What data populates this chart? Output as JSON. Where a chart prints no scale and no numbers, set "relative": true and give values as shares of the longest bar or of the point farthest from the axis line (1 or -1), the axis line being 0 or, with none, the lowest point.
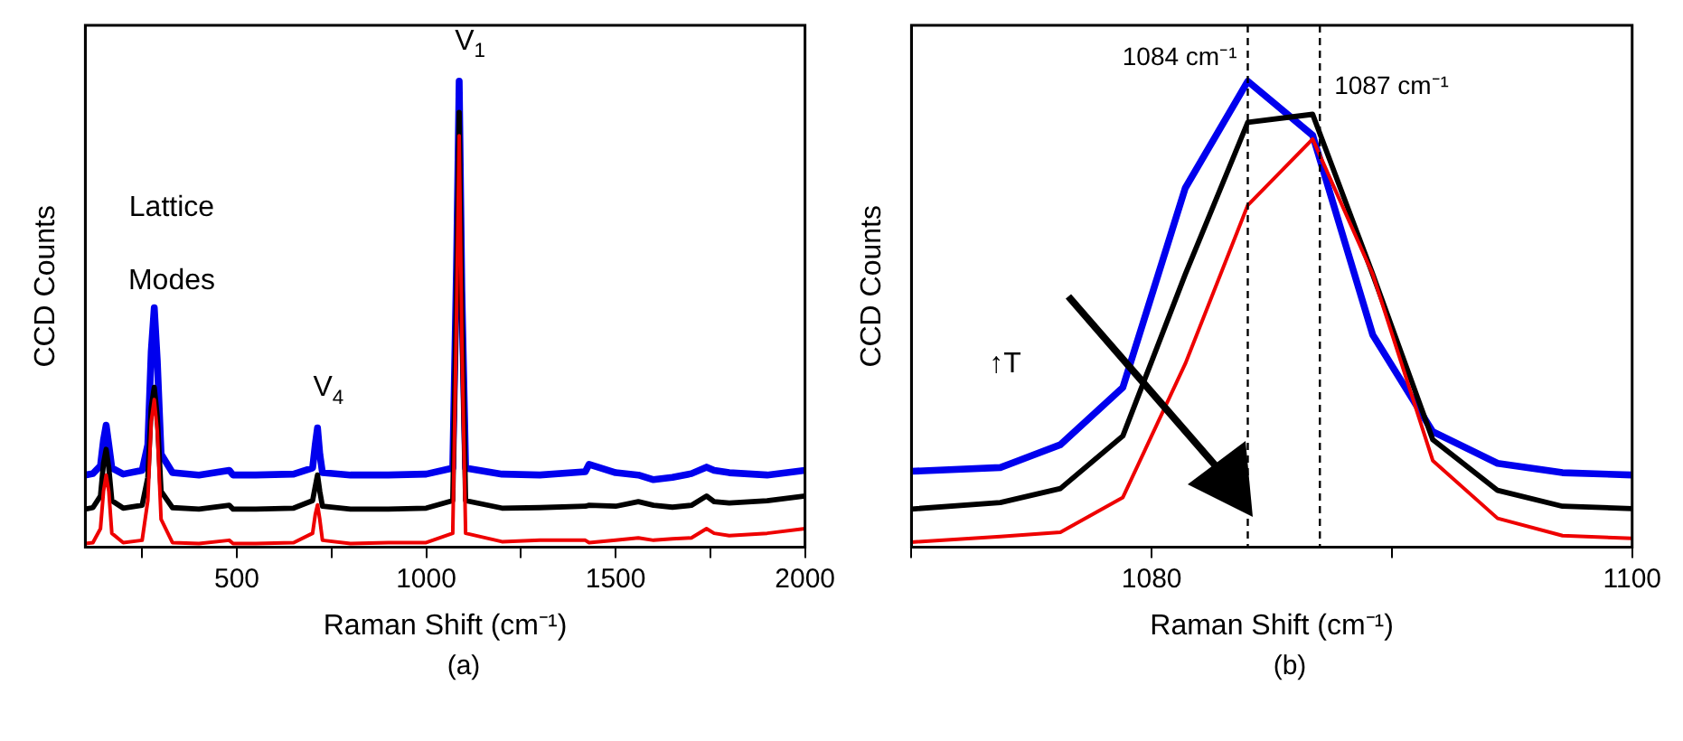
{
  "chart_data": [
    {
      "type": "line",
      "relative": true,
      "xlabel": "Raman Shift (cm⁻¹)",
      "ylabel": "CCD Counts",
      "xlim": [
        100,
        2000
      ],
      "xticks": [
        {
          "value": 250,
          "label": null
        },
        500,
        {
          "value": 750,
          "label": null
        },
        1000,
        {
          "value": 1250,
          "label": null
        },
        1500,
        {
          "value": 1750,
          "label": null
        },
        2000
      ],
      "grid": false,
      "legend": false,
      "marker": "none",
      "line_style": "solid",
      "x": [
        100,
        120,
        140,
        148,
        155,
        162,
        170,
        200,
        250,
        265,
        274,
        282,
        290,
        300,
        330,
        400,
        480,
        490,
        550,
        650,
        700,
        707,
        713,
        719,
        726,
        800,
        900,
        1000,
        1070,
        1080,
        1087,
        1094,
        1104,
        1200,
        1300,
        1420,
        1430,
        1500,
        1560,
        1600,
        1650,
        1700,
        1740,
        1760,
        1800,
        1900,
        2000
      ],
      "series": [
        {
          "color": "#0000ee",
          "values": [
            0.155,
            0.158,
            0.175,
            0.23,
            0.262,
            0.22,
            0.17,
            0.157,
            0.165,
            0.22,
            0.42,
            0.514,
            0.4,
            0.2,
            0.16,
            0.155,
            0.165,
            0.155,
            0.155,
            0.157,
            0.17,
            0.22,
            0.256,
            0.2,
            0.16,
            0.155,
            0.155,
            0.157,
            0.17,
            0.6,
            1.0,
            0.55,
            0.17,
            0.157,
            0.155,
            0.162,
            0.178,
            0.16,
            0.155,
            0.145,
            0.15,
            0.158,
            0.172,
            0.165,
            0.16,
            0.155,
            0.165
          ]
        },
        {
          "color": "#000000",
          "values": [
            0.082,
            0.085,
            0.11,
            0.18,
            0.21,
            0.17,
            0.1,
            0.084,
            0.09,
            0.15,
            0.3,
            0.343,
            0.28,
            0.12,
            0.085,
            0.082,
            0.09,
            0.082,
            0.082,
            0.084,
            0.1,
            0.13,
            0.155,
            0.12,
            0.088,
            0.082,
            0.082,
            0.084,
            0.1,
            0.55,
            0.933,
            0.5,
            0.1,
            0.084,
            0.085,
            0.088,
            0.09,
            0.088,
            0.098,
            0.09,
            0.086,
            0.09,
            0.11,
            0.098,
            0.095,
            0.1,
            0.11
          ]
        },
        {
          "color": "#ee0000",
          "values": [
            0.008,
            0.01,
            0.04,
            0.12,
            0.155,
            0.12,
            0.03,
            0.01,
            0.015,
            0.1,
            0.27,
            0.317,
            0.25,
            0.06,
            0.01,
            0.008,
            0.015,
            0.008,
            0.008,
            0.01,
            0.03,
            0.07,
            0.091,
            0.06,
            0.015,
            0.008,
            0.01,
            0.01,
            0.03,
            0.5,
            0.883,
            0.45,
            0.03,
            0.012,
            0.015,
            0.015,
            0.01,
            0.015,
            0.02,
            0.015,
            0.018,
            0.02,
            0.04,
            0.03,
            0.025,
            0.03,
            0.04
          ]
        }
      ],
      "annotations": [
        "Lattice",
        "Modes",
        {
          "text": "V$_{4}$",
          "x": 713,
          "y": 0.256
        },
        {
          "text": "V$_{1}$",
          "x": 1087,
          "y": 1.0
        },
        "(a)"
      ]
    },
    {
      "type": "line",
      "relative": true,
      "xlabel": "Raman Shift (cm⁻¹)",
      "ylabel": "CCD Counts",
      "xlim": [
        1070,
        1100
      ],
      "xticks": [
        {
          "value": 1070,
          "label": null
        },
        1080,
        {
          "value": 1090,
          "label": null
        },
        1100
      ],
      "grid": false,
      "legend": false,
      "marker": "none",
      "line_style": "solid",
      "x": [
        1070,
        1073.7,
        1076.2,
        1078.8,
        1081.4,
        1084,
        1086.7,
        1089.2,
        1091.7,
        1094.4,
        1097.1,
        1100
      ],
      "series": [
        {
          "color": "#0000ee",
          "values": [
            0.163,
            0.171,
            0.22,
            0.343,
            0.771,
            1.0,
            0.884,
            0.456,
            0.248,
            0.18,
            0.16,
            0.155
          ]
        },
        {
          "color": "#000000",
          "values": [
            0.082,
            0.096,
            0.126,
            0.239,
            0.586,
            0.912,
            0.929,
            0.586,
            0.231,
            0.122,
            0.088,
            0.083
          ]
        },
        {
          "color": "#ee0000",
          "values": [
            0.011,
            0.023,
            0.032,
            0.107,
            0.394,
            0.734,
            0.876,
            0.586,
            0.186,
            0.062,
            0.025,
            0.019
          ]
        }
      ],
      "ref_lines": [
        {
          "axis": "x",
          "value": 1084,
          "label": "1084 cm⁻¹",
          "color": "#000000",
          "line_style": "dashed"
        },
        {
          "axis": "x",
          "value": 1087,
          "label": "1087 cm⁻¹",
          "color": "#000000",
          "line_style": "dashed"
        }
      ],
      "annotations": [
        "↑T",
        "(b)"
      ]
    }
  ]
}
